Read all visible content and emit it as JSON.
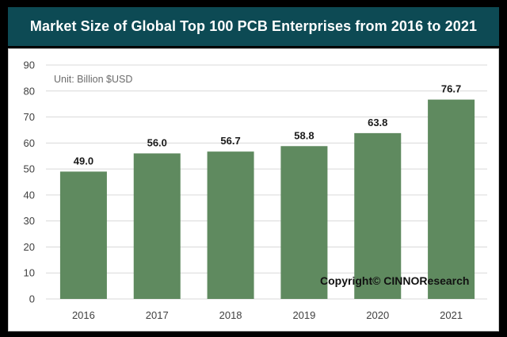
{
  "chart_data": {
    "type": "bar",
    "title": "Market Size of Global Top 100 PCB Enterprises from 2016 to 2021",
    "unit_note": "Unit: Billion $USD",
    "categories": [
      "2016",
      "2017",
      "2018",
      "2019",
      "2020",
      "2021"
    ],
    "values": [
      49.0,
      56.0,
      56.7,
      58.8,
      63.8,
      76.7
    ],
    "value_labels": [
      "49.0",
      "56.0",
      "56.7",
      "58.8",
      "63.8",
      "76.7"
    ],
    "ylim": [
      0,
      90
    ],
    "yticks": [
      "0",
      "10",
      "20",
      "30",
      "40",
      "50",
      "60",
      "70",
      "80",
      "90"
    ],
    "xlabel": "",
    "ylabel": "",
    "grid": true,
    "bar_color": "#5f8a5f",
    "grid_color": "#d9d9d9",
    "copyright": "Copyright© CINNOResearch"
  }
}
